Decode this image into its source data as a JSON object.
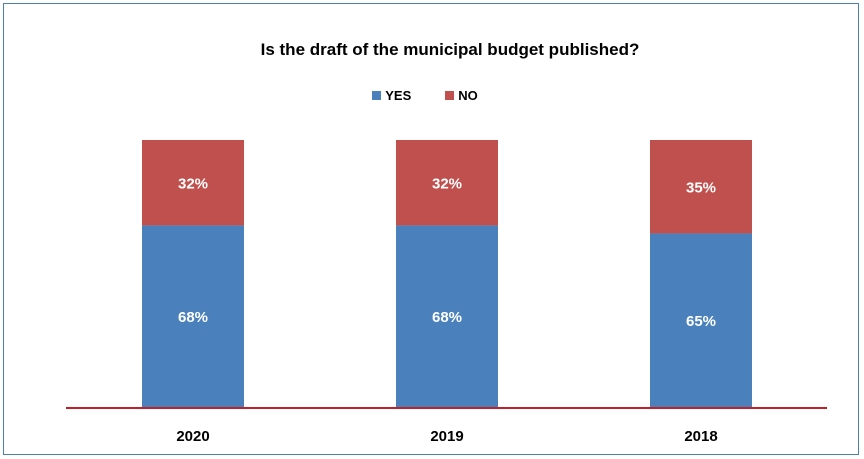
{
  "chart_data": {
    "type": "bar",
    "stacked": true,
    "title": "Is the draft of the municipal budget published?",
    "categories": [
      "2020",
      "2019",
      "2018"
    ],
    "series": [
      {
        "name": "YES",
        "values": [
          68,
          68,
          65
        ],
        "labels": [
          "68%",
          "68%",
          "65%"
        ],
        "color": "#4a81bd"
      },
      {
        "name": "NO",
        "values": [
          32,
          32,
          35
        ],
        "labels": [
          "32%",
          "32%",
          "35%"
        ],
        "color": "#c0504d"
      }
    ],
    "ylim": [
      0,
      100
    ],
    "grid": false,
    "legend_position": "top",
    "axis_color": "#c0202a"
  }
}
